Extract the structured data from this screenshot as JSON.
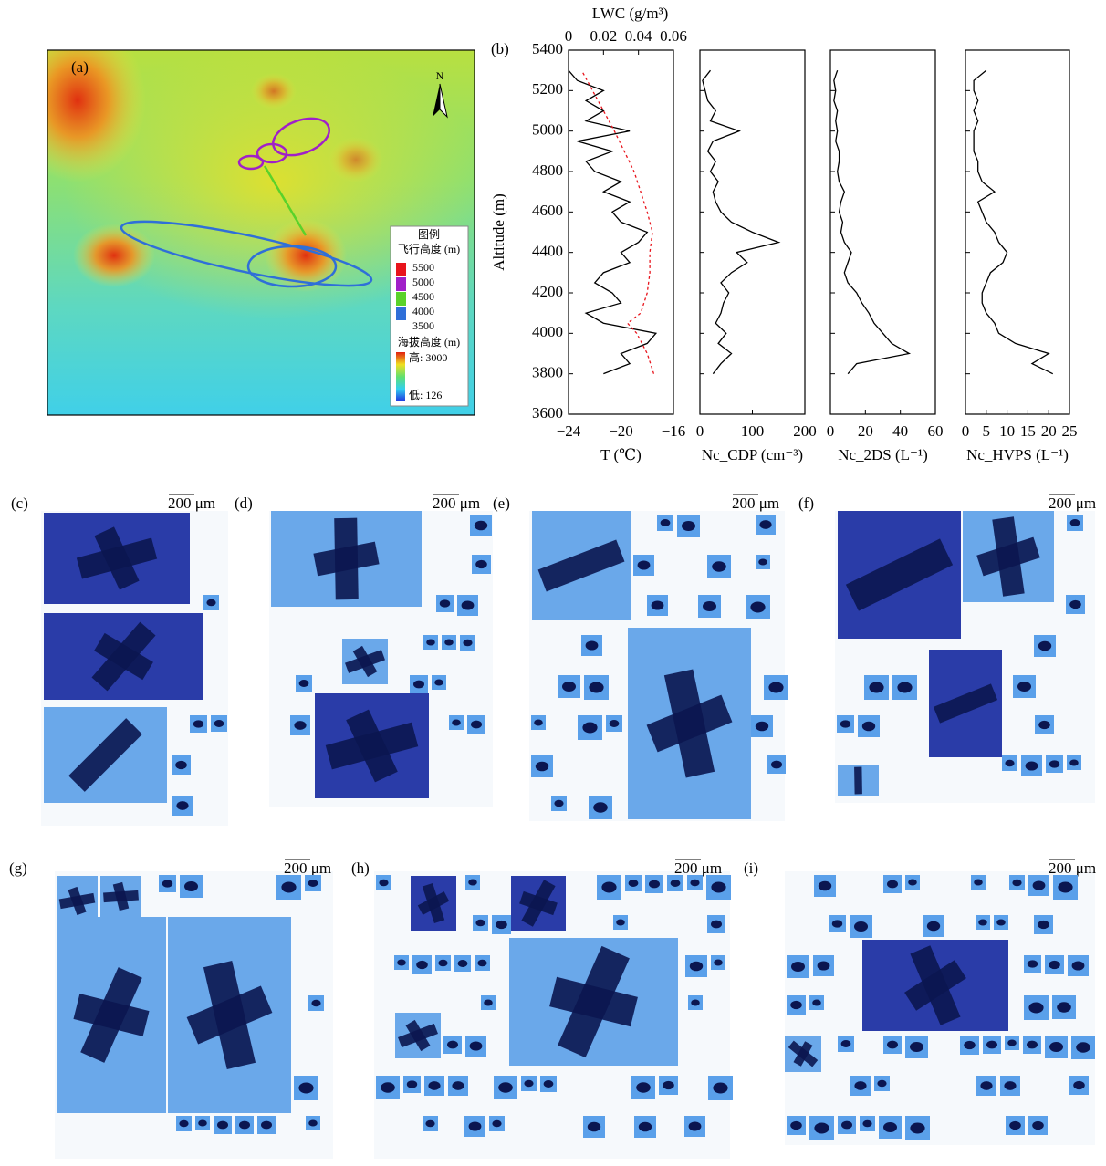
{
  "map": {
    "label": "(a)",
    "north": "N",
    "legend_title": "图例",
    "flight_alt_title": "飞行高度 (m)",
    "flight_alt_labels": [
      "5500",
      "5000",
      "4500",
      "4000",
      "3500"
    ],
    "flight_alt_colors": [
      "#e8141c",
      "#a020c8",
      "#5ad22a",
      "#2f6fd8"
    ],
    "terrain_title": "海拔高度 (m)",
    "terrain_high": "高: 3000",
    "terrain_low": "低: 126"
  },
  "chart_data": [
    {
      "type": "line",
      "label": "(b)",
      "xlabel": "T (℃)",
      "x2label": "LWC (g/m³)",
      "ylabel": "Altitude (m)",
      "xlim": [
        -24,
        -16
      ],
      "xticks": [
        {
          "value": -24,
          "label": "−24"
        },
        {
          "value": -20,
          "label": "−20"
        },
        {
          "value": -16,
          "label": "−16"
        }
      ],
      "x2lim": [
        0,
        0.06
      ],
      "x2ticks": [
        0,
        0.02,
        0.04,
        0.06
      ],
      "ylim": [
        3600,
        5400
      ],
      "yticks": [
        3600,
        3800,
        4000,
        4200,
        4400,
        4600,
        4800,
        5000,
        5200,
        5400
      ],
      "series": [
        {
          "color": "#000000",
          "axis": "x2",
          "y": [
            3800,
            3850,
            3900,
            3950,
            4000,
            4050,
            4100,
            4150,
            4200,
            4250,
            4300,
            4350,
            4400,
            4450,
            4500,
            4550,
            4600,
            4650,
            4700,
            4750,
            4800,
            4850,
            4900,
            4950,
            5000,
            5050,
            5100,
            5150,
            5200,
            5250,
            5300
          ],
          "values": [
            0.02,
            0.035,
            0.03,
            0.045,
            0.05,
            0.02,
            0.01,
            0.03,
            0.025,
            0.015,
            0.02,
            0.035,
            0.03,
            0.04,
            0.045,
            0.03,
            0.025,
            0.035,
            0.02,
            0.03,
            0.015,
            0.01,
            0.025,
            0.005,
            0.035,
            0.01,
            0.02,
            0.01,
            0.02,
            0.005,
            0
          ]
        },
        {
          "color": "#e8141c",
          "dashed": true,
          "y": [
            3800,
            3900,
            4000,
            4050,
            4100,
            4200,
            4300,
            4400,
            4500,
            4600,
            4800,
            5000,
            5300
          ],
          "values": [
            -17.5,
            -18,
            -18.8,
            -19.5,
            -18.5,
            -18,
            -17.8,
            -17.8,
            -17.6,
            -18,
            -19,
            -20.5,
            -23
          ]
        }
      ]
    },
    {
      "type": "line",
      "xlabel": "Nc_CDP (cm⁻³)",
      "xlim": [
        0,
        200
      ],
      "xticks": [
        0,
        100,
        200
      ],
      "ylim": [
        3600,
        5400
      ],
      "series": [
        {
          "color": "#000000",
          "y": [
            3800,
            3850,
            3900,
            3950,
            4000,
            4050,
            4100,
            4150,
            4200,
            4250,
            4300,
            4350,
            4400,
            4450,
            4500,
            4550,
            4600,
            4650,
            4700,
            4750,
            4800,
            4850,
            4900,
            4950,
            5000,
            5050,
            5100,
            5150,
            5200,
            5250,
            5300
          ],
          "values": [
            25,
            40,
            60,
            35,
            50,
            30,
            40,
            45,
            55,
            40,
            60,
            90,
            70,
            150,
            100,
            60,
            40,
            30,
            25,
            35,
            20,
            30,
            15,
            25,
            75,
            20,
            30,
            15,
            10,
            5,
            20
          ]
        }
      ]
    },
    {
      "type": "line",
      "xlabel": "Nc_2DS (L⁻¹)",
      "xlim": [
        0,
        60
      ],
      "xticks": [
        0,
        20,
        40,
        60
      ],
      "ylim": [
        3600,
        5400
      ],
      "series": [
        {
          "color": "#000000",
          "y": [
            3800,
            3850,
            3900,
            3950,
            4000,
            4050,
            4100,
            4150,
            4200,
            4250,
            4300,
            4350,
            4400,
            4450,
            4500,
            4550,
            4600,
            4650,
            4700,
            4750,
            4800,
            4850,
            4900,
            4950,
            5000,
            5050,
            5100,
            5150,
            5200,
            5250,
            5300
          ],
          "values": [
            10,
            15,
            45,
            35,
            30,
            25,
            22,
            18,
            15,
            10,
            8,
            10,
            12,
            8,
            6,
            7,
            5,
            6,
            8,
            5,
            4,
            5,
            5,
            3,
            4,
            3,
            4,
            2,
            3,
            2,
            4
          ]
        }
      ]
    },
    {
      "type": "line",
      "xlabel": "Nc_HVPS (L⁻¹)",
      "xlim": [
        0,
        25
      ],
      "xticks": [
        0,
        5,
        10,
        15,
        20,
        25
      ],
      "ylim": [
        3600,
        5400
      ],
      "series": [
        {
          "color": "#000000",
          "y": [
            3800,
            3850,
            3900,
            3950,
            4000,
            4050,
            4100,
            4150,
            4200,
            4250,
            4300,
            4350,
            4400,
            4450,
            4500,
            4550,
            4600,
            4650,
            4700,
            4750,
            4800,
            4850,
            4900,
            4950,
            5000,
            5050,
            5100,
            5150,
            5200,
            5250,
            5300
          ],
          "values": [
            21,
            16,
            20,
            12,
            8,
            7,
            5,
            4,
            4,
            5,
            6,
            9,
            10,
            8,
            7,
            5,
            4,
            3,
            7,
            4,
            3,
            3,
            2,
            2,
            2,
            3,
            2,
            3,
            2,
            2,
            5
          ]
        }
      ]
    }
  ],
  "particle_panels": [
    {
      "label": "(c)",
      "scale_bar": "200 μm"
    },
    {
      "label": "(d)",
      "scale_bar": "200 μm"
    },
    {
      "label": "(e)",
      "scale_bar": "200 μm"
    },
    {
      "label": "(f)",
      "scale_bar": "200 μm"
    },
    {
      "label": "(g)",
      "scale_bar": "200 μm"
    },
    {
      "label": "(h)",
      "scale_bar": "200 μm"
    },
    {
      "label": "(i)",
      "scale_bar": "200 μm"
    }
  ]
}
